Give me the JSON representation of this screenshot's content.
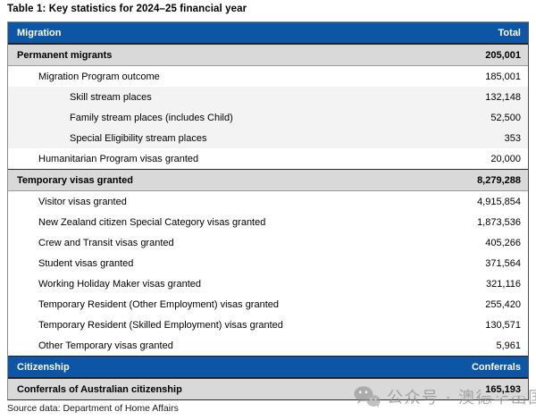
{
  "title": "Table 1: Key statistics for 2024–25 financial year",
  "source_note": "Source data: Department of Home Affairs",
  "watermark": {
    "icon": "wechat-icon",
    "text": "公众号 · 澳德华出国"
  },
  "colors": {
    "header_blue": "#0D56A6",
    "section_gray": "#D9D9D9",
    "shaded_row": "#F3F3F3",
    "header_text": "#FFFFFF",
    "border_dark": "#1F1F1F"
  },
  "table": {
    "rows": [
      {
        "label": "Migration",
        "value": "Total",
        "type": "header",
        "indent": 0
      },
      {
        "label": "Permanent migrants",
        "value": "205,001",
        "type": "section",
        "indent": 0
      },
      {
        "label": "Migration Program outcome",
        "value": "185,001",
        "type": "row",
        "indent": 1
      },
      {
        "label": "Skill stream places",
        "value": "132,148",
        "type": "shaded",
        "indent": 2
      },
      {
        "label": "Family stream places (includes Child)",
        "value": "52,500",
        "type": "shaded",
        "indent": 2
      },
      {
        "label": "Special Eligibility stream places",
        "value": "353",
        "type": "shaded",
        "indent": 2
      },
      {
        "label": "Humanitarian Program visas granted",
        "value": "20,000",
        "type": "row",
        "indent": 1
      },
      {
        "label": "Temporary visas granted",
        "value": "8,279,288",
        "type": "section",
        "indent": 0
      },
      {
        "label": "Visitor visas granted",
        "value": "4,915,854",
        "type": "row",
        "indent": 1
      },
      {
        "label": "New Zealand citizen Special Category visas granted",
        "value": "1,873,536",
        "type": "row",
        "indent": 1
      },
      {
        "label": "Crew and Transit visas granted",
        "value": "405,266",
        "type": "row",
        "indent": 1
      },
      {
        "label": "Student visas granted",
        "value": "371,564",
        "type": "row",
        "indent": 1
      },
      {
        "label": "Working Holiday Maker visas granted",
        "value": "321,116",
        "type": "row",
        "indent": 1
      },
      {
        "label": "Temporary Resident (Other Employment) visas granted",
        "value": "255,420",
        "type": "row",
        "indent": 1
      },
      {
        "label": "Temporary Resident (Skilled Employment) visas granted",
        "value": "130,571",
        "type": "row",
        "indent": 1
      },
      {
        "label": "Other Temporary visas granted",
        "value": "5,961",
        "type": "row",
        "indent": 1
      },
      {
        "label": "Citizenship",
        "value": "Conferrals",
        "type": "header",
        "indent": 0
      },
      {
        "label": "Conferrals of Australian citizenship",
        "value": "165,193",
        "type": "section",
        "indent": 0
      }
    ]
  }
}
